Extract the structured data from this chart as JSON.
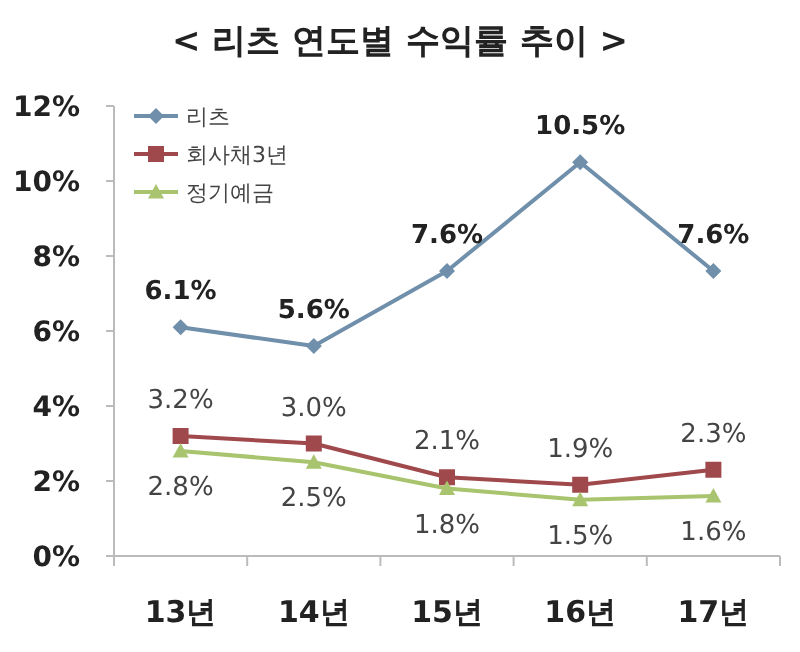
{
  "chart_data": {
    "type": "line",
    "title": "< 리츠 연도별 수익률 추이 >",
    "categories": [
      "13년",
      "14년",
      "15년",
      "16년",
      "17년"
    ],
    "ylim": [
      0,
      12
    ],
    "yticks": [
      {
        "value": 0,
        "label": "0%"
      },
      {
        "value": 2,
        "label": "2%"
      },
      {
        "value": 4,
        "label": "4%"
      },
      {
        "value": 6,
        "label": "6%"
      },
      {
        "value": 8,
        "label": "8%"
      },
      {
        "value": 10,
        "label": "10%"
      },
      {
        "value": 12,
        "label": "12%"
      }
    ],
    "grid": false,
    "legend": "top left",
    "line_style": "solid",
    "series": [
      {
        "name": "리츠",
        "color": "#6f8fab",
        "marker": "diamond",
        "values": [
          6.1,
          5.6,
          7.6,
          10.5,
          7.6
        ],
        "value_labels": [
          "6.1%",
          "5.6%",
          "7.6%",
          "10.5%",
          "7.6%"
        ]
      },
      {
        "name": "회사채3년",
        "color": "#a0494c",
        "marker": "square",
        "values": [
          3.2,
          3.0,
          2.1,
          1.9,
          2.3
        ],
        "value_labels": [
          "3.2%",
          "3.0%",
          "2.1%",
          "1.9%",
          "2.3%"
        ]
      },
      {
        "name": "정기예금",
        "color": "#a9c46e",
        "marker": "triangle",
        "values": [
          2.8,
          2.5,
          1.8,
          1.5,
          1.6
        ],
        "value_labels": [
          "2.8%",
          "2.5%",
          "1.8%",
          "1.5%",
          "1.6%"
        ]
      }
    ]
  }
}
